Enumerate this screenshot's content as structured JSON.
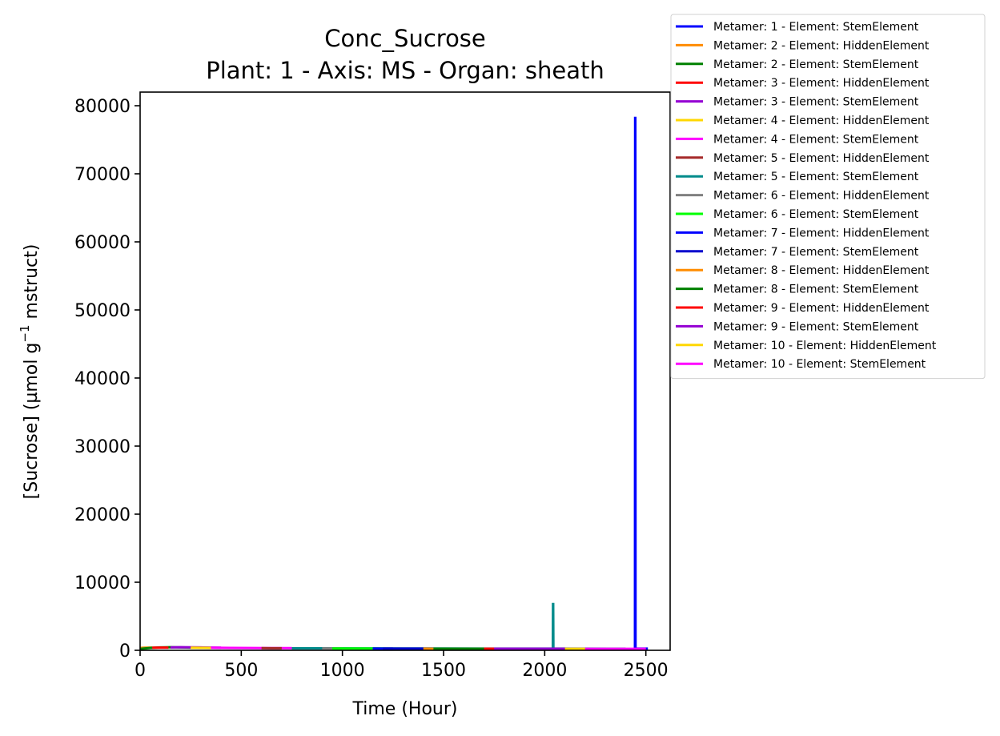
{
  "chart_data": {
    "type": "line",
    "title": "Conc_Sucrose",
    "subtitle": "Plant: 1 - Axis: MS - Organ: sheath",
    "xlabel": "Time (Hour)",
    "ylabel_main": "[Sucrose] (µmol g",
    "ylabel_sup": "−1",
    "ylabel_tail": " mstruct)",
    "xlim": [
      0,
      2620
    ],
    "ylim": [
      0,
      82000
    ],
    "xticks": [
      0,
      500,
      1000,
      1500,
      2000,
      2500
    ],
    "yticks": [
      0,
      10000,
      20000,
      30000,
      40000,
      50000,
      60000,
      70000,
      80000
    ],
    "grid": false,
    "legend_position": "outside-top-right",
    "series": [
      {
        "name": "Metamer: 1 - Element: StemElement",
        "color": "#0000ff",
        "x": [
          2446,
          2447,
          2448,
          2449,
          2450,
          2452,
          2500,
          2510
        ],
        "y": [
          300,
          78200,
          78200,
          300,
          280,
          260,
          250,
          250
        ]
      },
      {
        "name": "Metamer: 2 - Element: HiddenElement",
        "color": "#ff8c00",
        "x": [
          0,
          20,
          60
        ],
        "y": [
          350,
          380,
          400
        ]
      },
      {
        "name": "Metamer: 2 - Element: StemElement",
        "color": "#008000",
        "x": [
          0,
          50,
          100,
          150,
          200,
          250
        ],
        "y": [
          200,
          350,
          420,
          450,
          430,
          400
        ]
      },
      {
        "name": "Metamer: 3 - Element: HiddenElement",
        "color": "#ff0000",
        "x": [
          60,
          100,
          140
        ],
        "y": [
          380,
          400,
          390
        ]
      },
      {
        "name": "Metamer: 3 - Element: StemElement",
        "color": "#9400d3",
        "x": [
          150,
          200,
          250,
          300,
          350,
          400
        ],
        "y": [
          420,
          460,
          440,
          420,
          400,
          380
        ]
      },
      {
        "name": "Metamer: 4 - Element: HiddenElement",
        "color": "#ffd700",
        "x": [
          250,
          300,
          350
        ],
        "y": [
          380,
          370,
          360
        ]
      },
      {
        "name": "Metamer: 4 - Element: StemElement",
        "color": "#ff00ff",
        "x": [
          350,
          450,
          550,
          650,
          750
        ],
        "y": [
          380,
          360,
          340,
          330,
          320
        ]
      },
      {
        "name": "Metamer: 5 - Element: HiddenElement",
        "color": "#a52a2a",
        "x": [
          600,
          650,
          700
        ],
        "y": [
          320,
          315,
          310
        ]
      },
      {
        "name": "Metamer: 5 - Element: StemElement",
        "color": "#008b8b",
        "x": [
          750,
          900,
          1100,
          1300,
          1500,
          1700,
          1900,
          2040,
          2041,
          2042,
          2043,
          2045,
          2100,
          2400
        ],
        "y": [
          300,
          290,
          280,
          270,
          260,
          250,
          250,
          260,
          6800,
          6800,
          280,
          250,
          245,
          240
        ]
      },
      {
        "name": "Metamer: 6 - Element: HiddenElement",
        "color": "#808080",
        "x": [
          900,
          950,
          1000
        ],
        "y": [
          280,
          275,
          270
        ]
      },
      {
        "name": "Metamer: 6 - Element: StemElement",
        "color": "#00ff00",
        "x": [
          950,
          1050,
          1150,
          1200
        ],
        "y": [
          270,
          265,
          260,
          258
        ]
      },
      {
        "name": "Metamer: 7 - Element: HiddenElement",
        "color": "#0000ff",
        "x": [
          1150,
          1200,
          1250
        ],
        "y": [
          260,
          255,
          250
        ]
      },
      {
        "name": "Metamer: 7 - Element: StemElement",
        "color": "#0000cd",
        "x": [
          1200,
          1300,
          1400,
          1450
        ],
        "y": [
          255,
          250,
          248,
          245
        ]
      },
      {
        "name": "Metamer: 8 - Element: HiddenElement",
        "color": "#ff8c00",
        "x": [
          1400,
          1450,
          1500
        ],
        "y": [
          245,
          242,
          240
        ]
      },
      {
        "name": "Metamer: 8 - Element: StemElement",
        "color": "#008000",
        "x": [
          1450,
          1550,
          1650,
          1750
        ],
        "y": [
          240,
          238,
          236,
          235
        ]
      },
      {
        "name": "Metamer: 9 - Element: HiddenElement",
        "color": "#ff0000",
        "x": [
          1700,
          1750,
          1800
        ],
        "y": [
          235,
          233,
          232
        ]
      },
      {
        "name": "Metamer: 9 - Element: StemElement",
        "color": "#9400d3",
        "x": [
          1750,
          1900,
          2050,
          2200
        ],
        "y": [
          232,
          230,
          228,
          226
        ]
      },
      {
        "name": "Metamer: 10 - Element: HiddenElement",
        "color": "#ffd700",
        "x": [
          2100,
          2150,
          2200
        ],
        "y": [
          226,
          225,
          224
        ]
      },
      {
        "name": "Metamer: 10 - Element: StemElement",
        "color": "#ff00ff",
        "x": [
          2200,
          2300,
          2400,
          2500
        ],
        "y": [
          224,
          222,
          220,
          218
        ]
      }
    ]
  }
}
